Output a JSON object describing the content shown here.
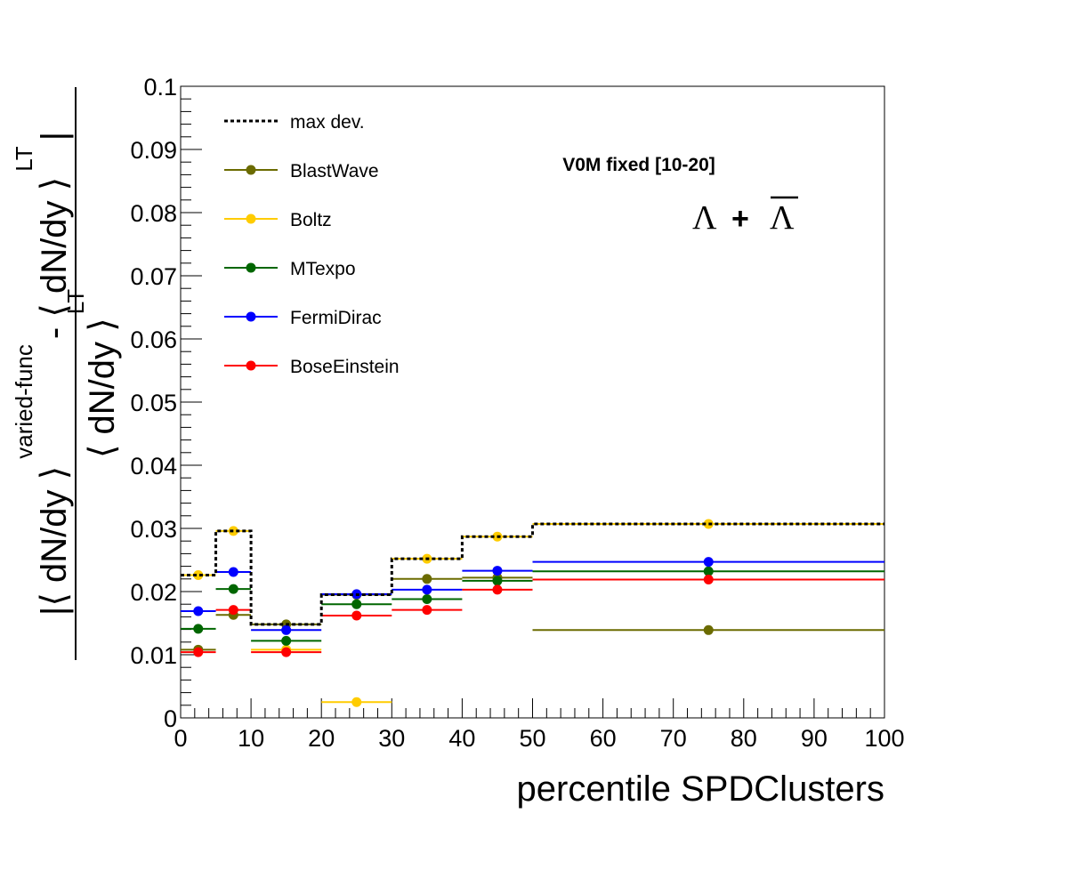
{
  "chart_data": {
    "type": "scatter",
    "xlabel": "percentile SPDClusters",
    "ylabel_parts": {
      "num_open": "|⟨ dN/dy ⟩",
      "num_sup": "varied-func",
      "num_minus": "- ⟨ dN/dy ⟩",
      "num_sup2": "LT",
      "num_close": "|",
      "den": "⟨ dN/dy ⟩",
      "den_sup": "LT"
    },
    "annotation": "V0M fixed [10-20]",
    "particle_label": {
      "left": "Λ",
      "plus": "+",
      "right": "Λ"
    },
    "xlim": [
      0,
      100
    ],
    "ylim": [
      0,
      0.1
    ],
    "x_ticks": [
      0,
      10,
      20,
      30,
      40,
      50,
      60,
      70,
      80,
      90,
      100
    ],
    "x_tick_labels": [
      "0",
      "10",
      "20",
      "30",
      "40",
      "50",
      "60",
      "70",
      "80",
      "90",
      "100"
    ],
    "y_ticks": [
      0,
      0.01,
      0.02,
      0.03,
      0.04,
      0.05,
      0.06,
      0.07,
      0.08,
      0.09,
      0.1
    ],
    "y_tick_labels": [
      "0",
      "0.01",
      "0.02",
      "0.03",
      "0.04",
      "0.05",
      "0.06",
      "0.07",
      "0.08",
      "0.09",
      "0.1"
    ],
    "bins": [
      [
        0,
        5
      ],
      [
        5,
        10
      ],
      [
        10,
        20
      ],
      [
        20,
        30
      ],
      [
        30,
        40
      ],
      [
        40,
        50
      ],
      [
        50,
        100
      ]
    ],
    "bin_centers": [
      2.5,
      7.5,
      15,
      25,
      35,
      45,
      75
    ],
    "max_dev": {
      "name": "max dev.",
      "color": "#000000",
      "values": [
        0.0226,
        0.0296,
        0.0148,
        0.0195,
        0.0252,
        0.0287,
        0.0307
      ]
    },
    "series": [
      {
        "name": "BlastWave",
        "color": "#6b6b00",
        "values": [
          0.0108,
          0.0163,
          0.0148,
          0.0195,
          0.022,
          0.0222,
          0.0139
        ]
      },
      {
        "name": "Boltz",
        "color": "#ffcc00",
        "values": [
          0.0226,
          0.0296,
          0.0108,
          0.0025,
          0.0252,
          0.0287,
          0.0307
        ]
      },
      {
        "name": "MTexpo",
        "color": "#006600",
        "values": [
          0.0141,
          0.0204,
          0.0122,
          0.018,
          0.0188,
          0.0217,
          0.0232
        ]
      },
      {
        "name": "FermiDirac",
        "color": "#0000ff",
        "values": [
          0.0169,
          0.0231,
          0.0139,
          0.0196,
          0.0203,
          0.0233,
          0.0247
        ]
      },
      {
        "name": "BoseEinstein",
        "color": "#ff0000",
        "values": [
          0.0104,
          0.0171,
          0.0104,
          0.0162,
          0.0171,
          0.0203,
          0.0219
        ]
      }
    ],
    "legend_position": "top-left",
    "grid": false
  }
}
